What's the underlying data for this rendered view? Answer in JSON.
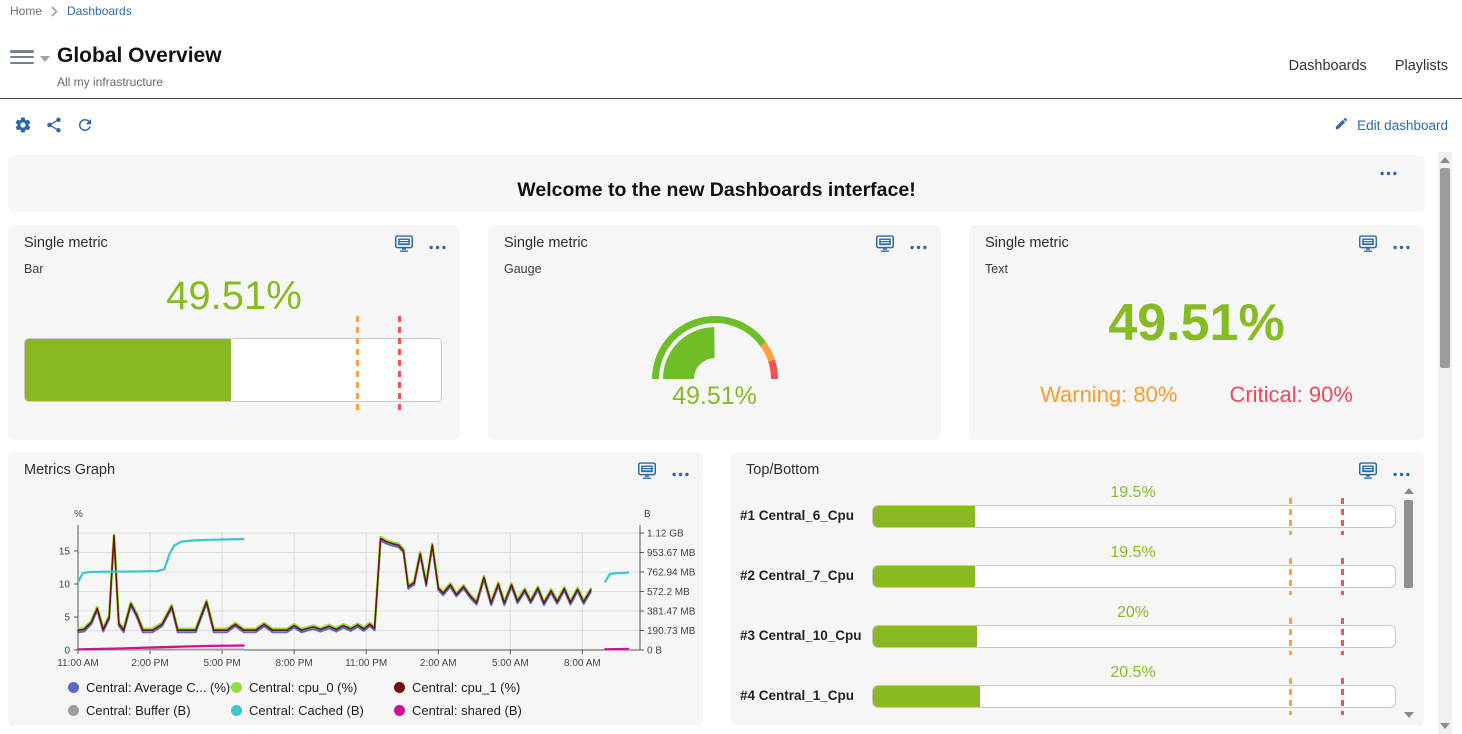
{
  "breadcrumb": {
    "home": "Home",
    "current": "Dashboards"
  },
  "header": {
    "title": "Global Overview",
    "subtitle": "All my infrastructure",
    "nav": [
      "Dashboards",
      "Playlists"
    ]
  },
  "toolbar": {
    "edit_label": "Edit dashboard"
  },
  "banner": {
    "title": "Welcome to the new Dashboards interface!"
  },
  "colors": {
    "accent_blue": "#2E68AA",
    "green": "#87BB24",
    "bar_green": "#88B922",
    "gauge_green": "#6FBE28",
    "warning_orange": "#FB9B2D",
    "critical_red": "#F0465A",
    "warning_line": "#FBA23F",
    "critical_line": "#F95058"
  },
  "icons": {
    "menu": "hamburger-menu-icon",
    "caret": "caret-down-icon",
    "settings": "gear-icon",
    "share": "share-icon",
    "refresh": "refresh-icon",
    "edit": "pencil-icon",
    "panel_display": "display-icon",
    "panel_more": "ellipsis-icon",
    "breadcrumb_separator": "chevron-right-icon"
  },
  "panels": {
    "bar": {
      "title": "Single metric",
      "subtitle": "Bar",
      "value_label": "49.51%",
      "percent": 49.51,
      "warning_percent": 80,
      "critical_percent": 90
    },
    "gauge": {
      "title": "Single metric",
      "subtitle": "Gauge",
      "value_label": "49.51%",
      "percent": 49.51,
      "warning_percent": 80,
      "critical_percent": 90
    },
    "text": {
      "title": "Single metric",
      "subtitle": "Text",
      "value_label": "49.51%",
      "warning_label": "Warning: 80%",
      "critical_label": "Critical: 90%"
    }
  },
  "chart_data": [
    {
      "type": "line",
      "title": "Metrics Graph",
      "x_axis": {
        "tick_labels": [
          "11:00 AM",
          "2:00 PM",
          "5:00 PM",
          "8:00 PM",
          "11:00 PM",
          "2:00 AM",
          "5:00 AM",
          "8:00 AM"
        ],
        "tick_hours": [
          0,
          3,
          6,
          9,
          12,
          15,
          18,
          21
        ],
        "range_hours": [
          0,
          23.4
        ]
      },
      "y_left": {
        "unit": "%",
        "tick_values": [
          0,
          5,
          10,
          15
        ],
        "max": 17.73
      },
      "y_right": {
        "unit": "B",
        "tick_labels": [
          "0 B",
          "190.73 MB",
          "381.47 MB",
          "572.2 MB",
          "762.94 MB",
          "953.67 MB",
          "1.12 GB"
        ],
        "tick_values_mb": [
          0,
          190.73,
          381.47,
          572.2,
          762.94,
          953.67,
          1144.41
        ],
        "max_mb": 1144.41
      },
      "grid": true,
      "legend_position": "bottom",
      "series": [
        {
          "name": "Central: Average C... (%)",
          "color": "#5C6BC0",
          "axis": "left",
          "width": 2,
          "z": 3,
          "base": "Central: cpu_1 (%)",
          "y_offset": -0.3
        },
        {
          "name": "Central: cpu_0 (%)",
          "color": "#8FE03A",
          "axis": "left",
          "width": 2.6,
          "z": 4,
          "base": "Central: cpu_1 (%)",
          "y_offset": 0.2
        },
        {
          "name": "Central: cpu_1 (%)",
          "color": "#6E1111",
          "axis": "left",
          "width": 1.6,
          "z": 5,
          "segments": [
            [
              [
                0,
                3
              ],
              [
                0.25,
                3.1
              ],
              [
                0.55,
                4.2
              ],
              [
                0.8,
                6.3
              ],
              [
                1.05,
                3.1
              ],
              [
                1.3,
                5
              ],
              [
                1.5,
                17.3
              ],
              [
                1.7,
                4
              ],
              [
                1.9,
                3
              ],
              [
                2.2,
                7
              ],
              [
                2.45,
                5.3
              ],
              [
                2.7,
                3
              ],
              [
                3.1,
                3
              ],
              [
                3.5,
                3.9
              ],
              [
                3.9,
                6.6
              ],
              [
                4.15,
                3
              ],
              [
                4.9,
                3
              ],
              [
                5.35,
                7.3
              ],
              [
                5.65,
                3
              ],
              [
                6.2,
                3
              ],
              [
                6.55,
                3.9
              ],
              [
                6.9,
                3
              ],
              [
                7.4,
                3
              ],
              [
                7.75,
                3.9
              ],
              [
                8.1,
                3
              ],
              [
                8.7,
                3
              ],
              [
                9.0,
                3.7
              ],
              [
                9.3,
                3
              ],
              [
                9.8,
                3.5
              ],
              [
                10.1,
                3.1
              ],
              [
                10.45,
                3.6
              ],
              [
                10.75,
                3.1
              ],
              [
                11.05,
                3.7
              ],
              [
                11.35,
                3.2
              ],
              [
                11.65,
                3.8
              ],
              [
                11.9,
                3.2
              ],
              [
                12.15,
                3.9
              ],
              [
                12.35,
                3.3
              ],
              [
                12.6,
                16.9
              ],
              [
                12.85,
                16.4
              ],
              [
                13.1,
                16.1
              ],
              [
                13.35,
                15.9
              ],
              [
                13.55,
                15.1
              ],
              [
                13.75,
                9.6
              ],
              [
                14.0,
                10.2
              ],
              [
                14.25,
                14.6
              ],
              [
                14.5,
                10
              ],
              [
                14.75,
                15.9
              ],
              [
                15.0,
                9.4
              ],
              [
                15.2,
                8.6
              ],
              [
                15.5,
                9.9
              ],
              [
                15.75,
                8.4
              ],
              [
                16.05,
                9.6
              ],
              [
                16.35,
                8.1
              ],
              [
                16.6,
                7.2
              ],
              [
                16.9,
                11
              ],
              [
                17.2,
                7.1
              ],
              [
                17.5,
                10
              ],
              [
                17.75,
                7.1
              ],
              [
                18.05,
                9.9
              ],
              [
                18.3,
                7.4
              ],
              [
                18.6,
                9.1
              ],
              [
                18.85,
                7.4
              ],
              [
                19.15,
                9.4
              ],
              [
                19.4,
                7.1
              ],
              [
                19.7,
                9
              ],
              [
                19.95,
                7.3
              ],
              [
                20.25,
                9.3
              ],
              [
                20.5,
                7.2
              ],
              [
                20.8,
                9.2
              ],
              [
                21.05,
                7.3
              ],
              [
                21.35,
                9.1
              ]
            ]
          ]
        },
        {
          "name": "Central: Buffer (B)",
          "color": "#9E9E9E",
          "axis": "right",
          "width": 2,
          "z": 1,
          "segments": [
            [
              [
                0,
                4
              ],
              [
                6.9,
                5
              ]
            ],
            [
              [
                21.95,
                4
              ],
              [
                22.9,
                4
              ]
            ]
          ]
        },
        {
          "name": "Central: Cached (B)",
          "color": "#3EC6CE",
          "axis": "right",
          "width": 2.2,
          "z": 6,
          "segments": [
            [
              [
                0,
                665
              ],
              [
                0.2,
                752
              ],
              [
                0.5,
                763
              ],
              [
                1.2,
                766
              ],
              [
                2.4,
                768
              ],
              [
                3.3,
                772
              ],
              [
                3.6,
                790
              ],
              [
                3.8,
                935
              ],
              [
                4.0,
                1020
              ],
              [
                4.3,
                1060
              ],
              [
                4.8,
                1072
              ],
              [
                5.5,
                1078
              ],
              [
                6.2,
                1082
              ],
              [
                6.9,
                1085
              ]
            ],
            [
              [
                21.95,
                668
              ],
              [
                22.15,
                745
              ],
              [
                22.5,
                752
              ],
              [
                22.9,
                757
              ]
            ]
          ]
        },
        {
          "name": "Central: shared (B)",
          "color": "#CC1197",
          "axis": "right",
          "width": 2.2,
          "z": 2,
          "segments": [
            [
              [
                0,
                6
              ],
              [
                1.5,
                14
              ],
              [
                3,
                24
              ],
              [
                4.5,
                34
              ],
              [
                5.5,
                40
              ],
              [
                6.9,
                44
              ]
            ],
            [
              [
                21.95,
                8
              ],
              [
                22.9,
                10
              ]
            ]
          ]
        }
      ]
    },
    {
      "type": "bar",
      "orientation": "horizontal",
      "title": "Top/Bottom",
      "categories": [
        "#1 Central_6_Cpu",
        "#2 Central_7_Cpu",
        "#3 Central_10_Cpu",
        "#4 Central_1_Cpu"
      ],
      "values": [
        19.5,
        19.5,
        20,
        20.5
      ],
      "value_labels": [
        "19.5%",
        "19.5%",
        "20%",
        "20.5%"
      ],
      "xlim": [
        0,
        100
      ],
      "warning_percent": 80,
      "critical_percent": 90
    }
  ]
}
